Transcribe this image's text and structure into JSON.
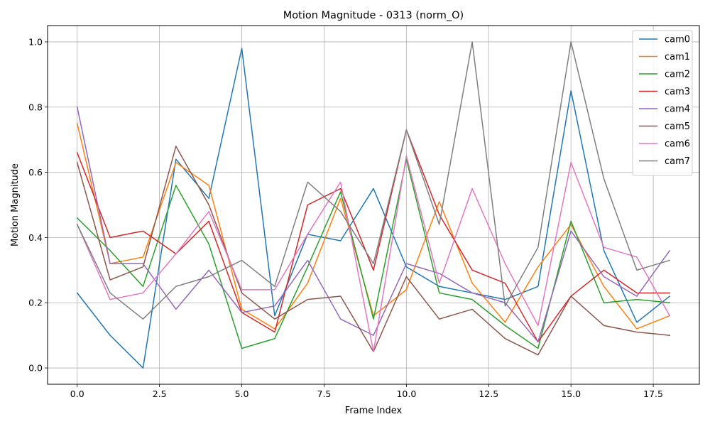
{
  "chart_data": {
    "type": "line",
    "title": "Motion Magnitude - 0313 (norm_O)",
    "xlabel": "Frame Index",
    "ylabel": "Motion Magnitude",
    "xlim": [
      -0.9,
      18.9
    ],
    "ylim": [
      -0.05,
      1.05
    ],
    "xticks": [
      0.0,
      2.5,
      5.0,
      7.5,
      10.0,
      12.5,
      15.0,
      17.5
    ],
    "xtick_labels": [
      "0.0",
      "2.5",
      "5.0",
      "7.5",
      "10.0",
      "12.5",
      "15.0",
      "17.5"
    ],
    "yticks": [
      0.0,
      0.2,
      0.4,
      0.6,
      0.8,
      1.0
    ],
    "ytick_labels": [
      "0.0",
      "0.2",
      "0.4",
      "0.6",
      "0.8",
      "1.0"
    ],
    "grid": true,
    "legend_position": "top-right",
    "x": [
      0,
      1,
      2,
      3,
      4,
      5,
      6,
      7,
      8,
      9,
      10,
      11,
      12,
      13,
      14,
      15,
      16,
      17,
      18
    ],
    "series": [
      {
        "name": "cam0",
        "color": "#1f77b4",
        "values": [
          0.23,
          0.1,
          0.0,
          0.64,
          0.52,
          0.98,
          0.16,
          0.41,
          0.39,
          0.55,
          0.31,
          0.25,
          0.23,
          0.21,
          0.25,
          0.85,
          0.36,
          0.14,
          0.22
        ]
      },
      {
        "name": "cam1",
        "color": "#ff7f0e",
        "values": [
          0.75,
          0.32,
          0.34,
          0.63,
          0.56,
          0.18,
          0.12,
          0.26,
          0.52,
          0.16,
          0.24,
          0.51,
          0.26,
          0.14,
          0.31,
          0.44,
          0.25,
          0.12,
          0.16
        ]
      },
      {
        "name": "cam2",
        "color": "#2ca02c",
        "values": [
          0.46,
          0.36,
          0.25,
          0.56,
          0.38,
          0.06,
          0.09,
          0.31,
          0.54,
          0.15,
          0.64,
          0.23,
          0.21,
          0.13,
          0.06,
          0.45,
          0.2,
          0.21,
          0.2
        ]
      },
      {
        "name": "cam3",
        "color": "#d62728",
        "values": [
          0.66,
          0.4,
          0.42,
          0.35,
          0.45,
          0.17,
          0.11,
          0.5,
          0.55,
          0.3,
          0.73,
          0.47,
          0.3,
          0.26,
          0.08,
          0.22,
          0.3,
          0.23,
          0.23
        ]
      },
      {
        "name": "cam4",
        "color": "#9467bd",
        "values": [
          0.8,
          0.32,
          0.32,
          0.18,
          0.3,
          0.17,
          0.19,
          0.33,
          0.15,
          0.1,
          0.32,
          0.29,
          0.23,
          0.2,
          0.08,
          0.42,
          0.28,
          0.22,
          0.36
        ]
      },
      {
        "name": "cam5",
        "color": "#8c564b",
        "values": [
          0.63,
          0.27,
          0.31,
          0.68,
          0.5,
          0.23,
          0.15,
          0.21,
          0.22,
          0.05,
          0.28,
          0.15,
          0.18,
          0.09,
          0.04,
          0.22,
          0.13,
          0.11,
          0.1
        ]
      },
      {
        "name": "cam6",
        "color": "#e377c2",
        "values": [
          0.44,
          0.21,
          0.23,
          0.35,
          0.48,
          0.24,
          0.24,
          0.41,
          0.57,
          0.05,
          0.65,
          0.26,
          0.55,
          0.32,
          0.13,
          0.63,
          0.37,
          0.34,
          0.16
        ]
      },
      {
        "name": "cam7",
        "color": "#7f7f7f",
        "values": [
          0.44,
          0.23,
          0.15,
          0.25,
          0.28,
          0.33,
          0.25,
          0.57,
          0.48,
          0.32,
          0.73,
          0.44,
          1.0,
          0.19,
          0.37,
          1.0,
          0.58,
          0.3,
          0.33
        ]
      }
    ]
  }
}
